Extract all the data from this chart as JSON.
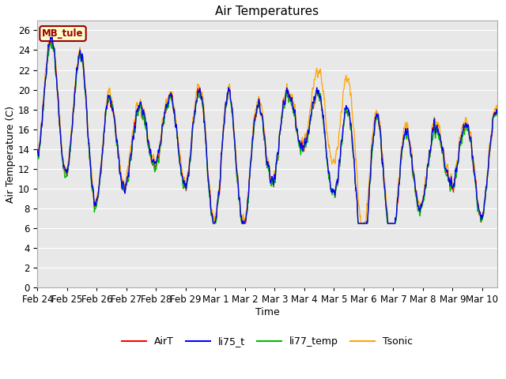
{
  "title": "Air Temperatures",
  "xlabel": "Time",
  "ylabel": "Air Temperature (C)",
  "ylim": [
    0,
    27
  ],
  "yticks": [
    0,
    2,
    4,
    6,
    8,
    10,
    12,
    14,
    16,
    18,
    20,
    22,
    24,
    26
  ],
  "line_colors": {
    "AirT": "#ff0000",
    "li75_t": "#0000ff",
    "li77_temp": "#00bb00",
    "Tsonic": "#ffa500"
  },
  "legend_labels": [
    "AirT",
    "li75_t",
    "li77_temp",
    "Tsonic"
  ],
  "annotation_text": "MB_tule",
  "annotation_color": "#990000",
  "annotation_bg": "#ffffcc",
  "background_color": "#ffffff",
  "plot_bg_color": "#e8e8e8",
  "grid_color": "#ffffff",
  "date_labels": [
    "Feb 24",
    "Feb 25",
    "Feb 26",
    "Feb 27",
    "Feb 28",
    "Feb 29",
    "Mar 1",
    "Mar 2",
    "Mar 3",
    "Mar 4",
    "Mar 5",
    "Mar 6",
    "Mar 7",
    "Mar 8",
    "Mar 9",
    "Mar 10"
  ],
  "title_fontsize": 11,
  "axis_label_fontsize": 9,
  "tick_fontsize": 8.5,
  "legend_fontsize": 9
}
